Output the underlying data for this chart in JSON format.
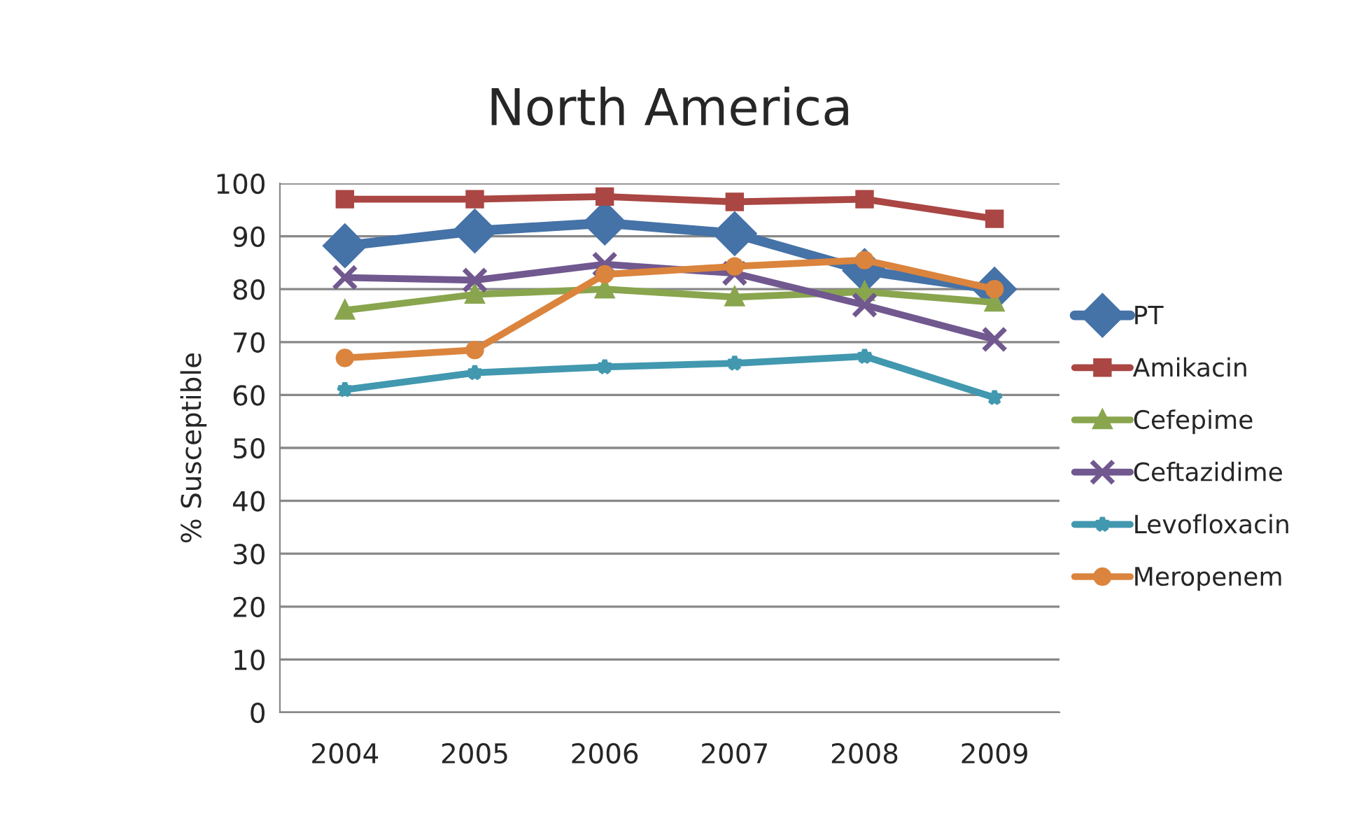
{
  "chart_data": {
    "type": "line",
    "title": "North America",
    "ylabel": "% Susceptible",
    "categories": [
      "2004",
      "2005",
      "2006",
      "2007",
      "2008",
      "2009"
    ],
    "series": [
      {
        "name": "PT",
        "color": "#4572a7",
        "marker": "diamond",
        "values": [
          88.2,
          91,
          92.5,
          90.5,
          83.5,
          80
        ]
      },
      {
        "name": "Amikacin",
        "color": "#aa4643",
        "marker": "square",
        "values": [
          97,
          97,
          97.5,
          96.5,
          97,
          93.3
        ]
      },
      {
        "name": "Cefepime",
        "color": "#89a54e",
        "marker": "triangle",
        "values": [
          76,
          79,
          80,
          78.5,
          79.5,
          77.5
        ]
      },
      {
        "name": "Ceftazidime",
        "color": "#71588f",
        "marker": "cross",
        "values": [
          82.2,
          81.7,
          84.7,
          83,
          77,
          70.5
        ]
      },
      {
        "name": "Levofloxacin",
        "color": "#4198af",
        "marker": "star",
        "values": [
          61,
          64.2,
          65.3,
          66,
          67.3,
          59.5
        ]
      },
      {
        "name": "Meropenem",
        "color": "#db843d",
        "marker": "circle",
        "values": [
          67,
          68.5,
          82.8,
          84.3,
          85.5,
          80
        ]
      }
    ],
    "ylim": [
      0,
      100
    ],
    "yticks": [
      0,
      10,
      20,
      30,
      40,
      50,
      60,
      70,
      80,
      90,
      100
    ],
    "grid": "y",
    "legend": "right"
  }
}
